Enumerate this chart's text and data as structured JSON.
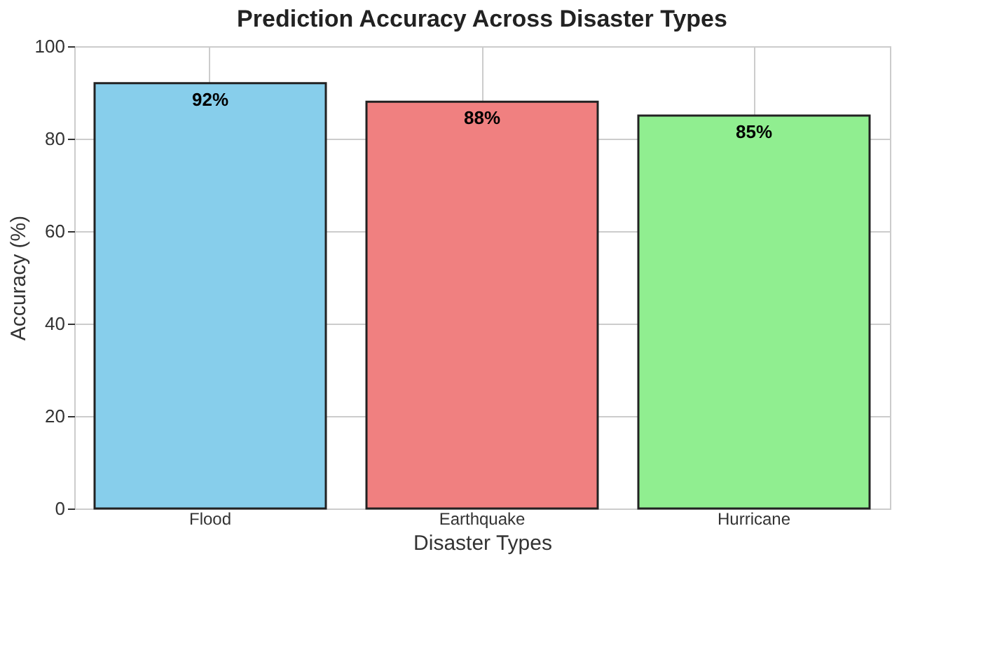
{
  "chart_data": {
    "type": "bar",
    "title": "Prediction Accuracy Across Disaster Types",
    "xlabel": "Disaster Types",
    "ylabel": "Accuracy (%)",
    "categories": [
      "Flood",
      "Earthquake",
      "Hurricane"
    ],
    "values": [
      92,
      88,
      85
    ],
    "colors": [
      "#87ceeb",
      "#f08080",
      "#90ee90"
    ],
    "value_labels": [
      "92%",
      "88%",
      "85%"
    ],
    "ylim": [
      0,
      100
    ],
    "yticks": [
      0,
      20,
      40,
      60,
      80,
      100
    ],
    "grid": true
  }
}
